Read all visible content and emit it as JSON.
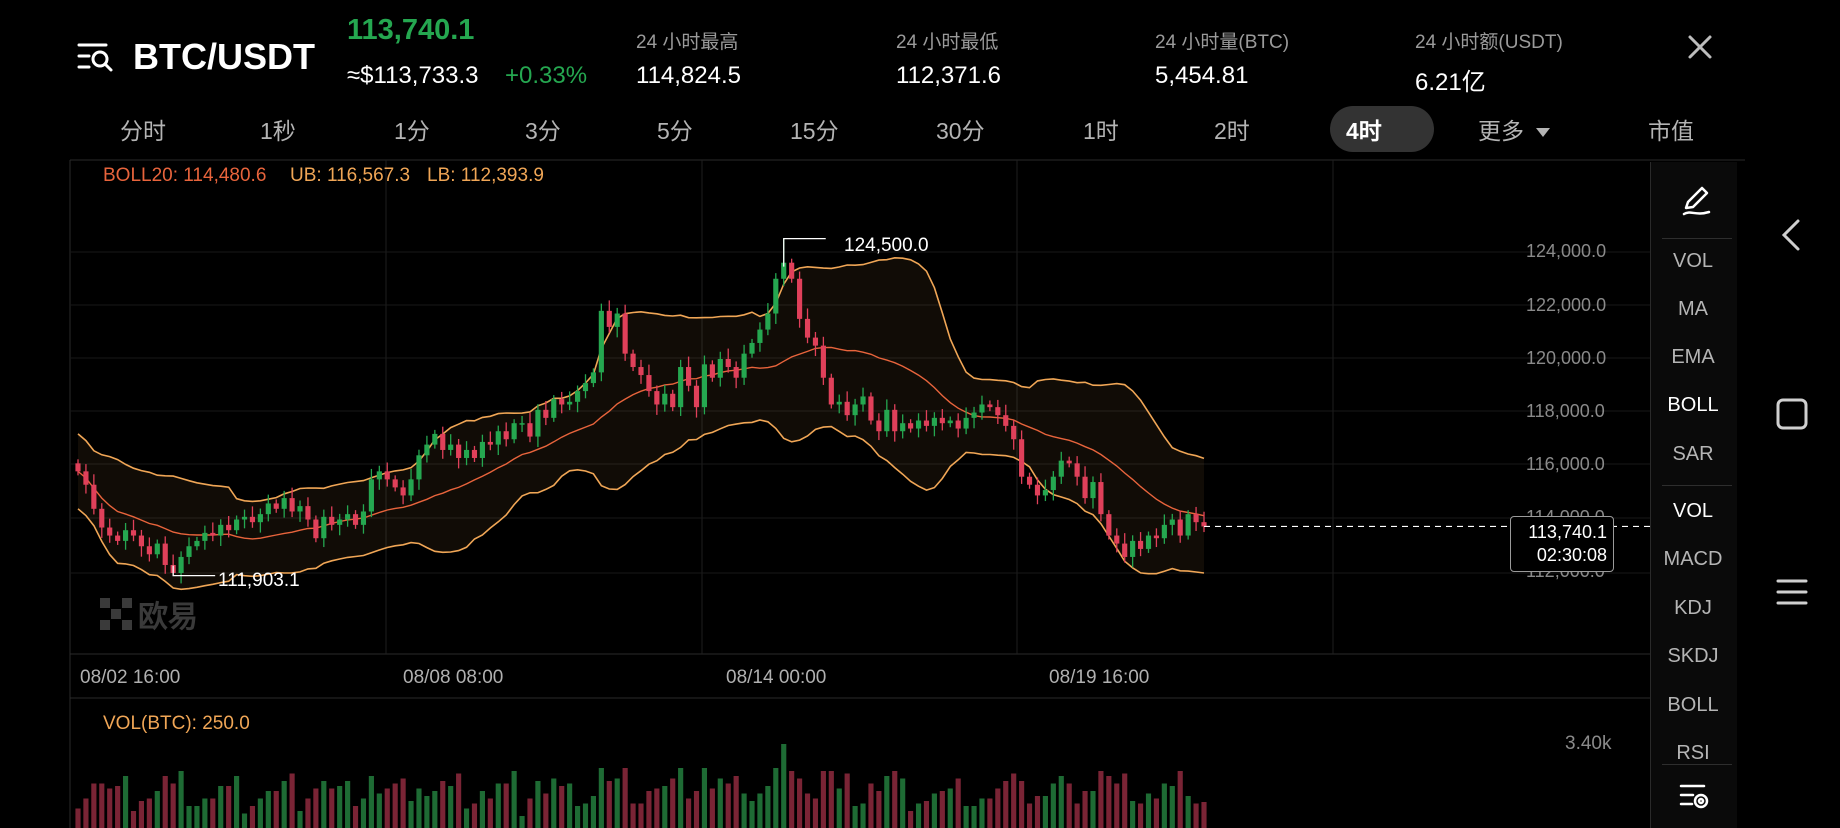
{
  "header": {
    "pair": "BTC/USDT",
    "last_price": "113,740.1",
    "usd_price": "≈$113,733.3",
    "change": "+0.33%",
    "stats": [
      {
        "label": "24 小时最高",
        "value": "114,824.5"
      },
      {
        "label": "24 小时最低",
        "value": "112,371.6"
      },
      {
        "label": "24 小时量(BTC)",
        "value": "5,454.81"
      },
      {
        "label": "24 小时额(USDT)",
        "value": "6.21亿"
      }
    ]
  },
  "intervals": [
    "分时",
    "1秒",
    "1分",
    "3分",
    "5分",
    "15分",
    "30分",
    "1时",
    "2时",
    "4时",
    "更多",
    "市值"
  ],
  "selected_interval": "4时",
  "boll": {
    "boll20": "BOLL20: 114,480.6",
    "ub": "UB: 116,567.3",
    "lb": "LB: 112,393.9"
  },
  "price_axis": [
    "124,000.0",
    "122,000.0",
    "120,000.0",
    "118,000.0",
    "116,000.0",
    "114,000.0",
    "112,000.0"
  ],
  "time_axis": [
    "08/02 16:00",
    "08/08 08:00",
    "08/14 00:00",
    "08/19 16:00"
  ],
  "annotations": {
    "high": "124,500.0",
    "low": "111,903.1",
    "current_price": "113,740.1",
    "countdown": "02:30:08"
  },
  "watermark": "欧易",
  "volume": {
    "title": "VOL(BTC): 250.0",
    "axis_max": "3.40k"
  },
  "indicators_main": [
    "VOL",
    "MA",
    "EMA",
    "BOLL",
    "SAR"
  ],
  "indicators_sub": [
    "VOL",
    "MACD",
    "KDJ",
    "SKDJ",
    "BOLL",
    "RSI"
  ],
  "active_main": "BOLL",
  "active_sub": "VOL",
  "colors": {
    "up": "#25a750",
    "down": "#e0405a",
    "boll_band": "#f0a656",
    "boll_mid": "#e8643c",
    "volume_up": "#1e6b34",
    "volume_down": "#7a2435"
  },
  "chart_data": {
    "type": "candlestick",
    "title": "BTC/USDT 4时",
    "y_range": [
      111000,
      125200
    ],
    "high": 124500.0,
    "low": 111903.1,
    "current": 113740.1,
    "closes": [
      115800,
      115300,
      114400,
      113700,
      113400,
      113200,
      113600,
      113400,
      113000,
      112700,
      113100,
      112300,
      112000,
      112600,
      113000,
      113200,
      113500,
      113400,
      113800,
      113600,
      114000,
      114100,
      113900,
      114200,
      114600,
      114400,
      114800,
      114300,
      114500,
      114000,
      113300,
      114100,
      113800,
      114000,
      114200,
      113800,
      114300,
      115500,
      115800,
      115500,
      115200,
      114900,
      115500,
      116400,
      116800,
      117200,
      116600,
      116800,
      116300,
      116600,
      116300,
      116900,
      116800,
      117300,
      117000,
      117600,
      117600,
      117100,
      118100,
      117800,
      118500,
      118300,
      118400,
      118800,
      119100,
      119500,
      121800,
      121200,
      121700,
      120200,
      119700,
      119400,
      118800,
      118300,
      118700,
      118200,
      119700,
      119000,
      118200,
      119800,
      119300,
      120000,
      119700,
      119300,
      120200,
      120600,
      121100,
      121700,
      123000,
      123600,
      123000,
      121500,
      120800,
      120500,
      119300,
      118300,
      118400,
      117900,
      118300,
      118600,
      117700,
      117300,
      118100,
      117300,
      117600,
      117400,
      117700,
      117500,
      117800,
      117600,
      117700,
      117400,
      117800,
      118000,
      118300,
      118200,
      117900,
      117500,
      117000,
      115600,
      115300,
      114900,
      115100,
      115600,
      116200,
      116100,
      115600,
      114800,
      115400,
      114200,
      113400,
      113100,
      112600,
      113200,
      112900,
      113400,
      113300,
      113800,
      114000,
      113400,
      114200,
      113900,
      113740
    ]
  }
}
